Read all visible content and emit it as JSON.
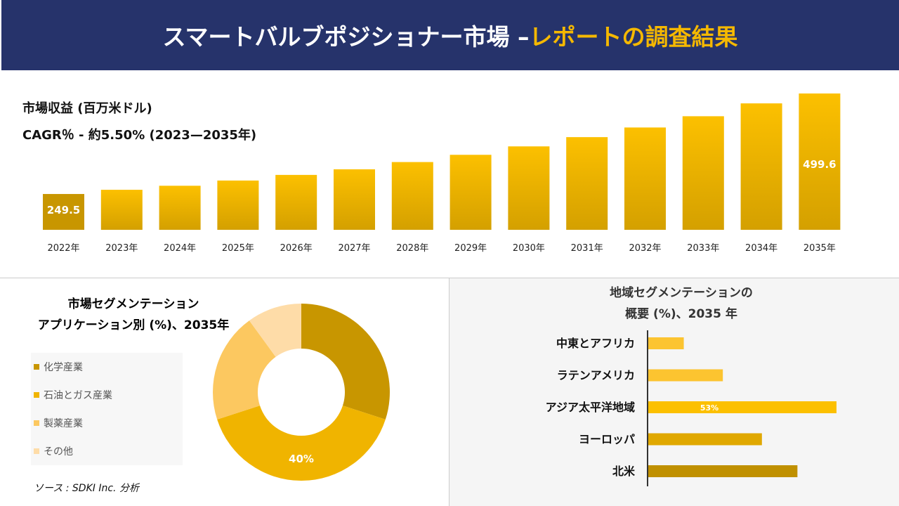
{
  "header": {
    "title_main": "スマートバルブポジショナー市場 –",
    "title_accent": "レポートの調査結果"
  },
  "revenue_label": "市場収益 (百万米ドル)",
  "cagr_label": "CAGR％ - 約5.50% (2023—2035年)",
  "colors": {
    "header_bg": "#26336b",
    "accent": "#f5b800",
    "bar_dark": "#c89600",
    "bar_light": "#fcc000"
  },
  "chart_data": [
    {
      "type": "bar",
      "title": "市場収益 (百万米ドル)",
      "categories": [
        "2022年",
        "2023年",
        "2024年",
        "2025年",
        "2026年",
        "2027年",
        "2028年",
        "2029年",
        "2030年",
        "2031年",
        "2032年",
        "2033年",
        "2034年",
        "2035年"
      ],
      "values": [
        249.5,
        260,
        270,
        283,
        297,
        311,
        329,
        347,
        368,
        391,
        415,
        443,
        475,
        499.6
      ],
      "data_labels": {
        "0": "249.5",
        "13": "499.6"
      }
    },
    {
      "type": "pie",
      "title": "市場セグメンテーション アプリケーション別 (%)、2035年",
      "title_lines": [
        "市場セグメンテーション",
        "アプリケーション別 (%)、2035年"
      ],
      "labels": [
        "化学産業",
        "石油とガス産業",
        "製薬産業",
        "その他"
      ],
      "values": [
        30,
        40,
        20,
        10
      ],
      "colors": [
        "#c89600",
        "#f0b400",
        "#fcc860",
        "#fedca8"
      ],
      "data_labels": {
        "1": "40%"
      }
    },
    {
      "type": "bar",
      "orientation": "horizontal",
      "title": "地域セグメンテーションの概要 (%)、2035 年",
      "title_lines": [
        "地域セグメンテーションの",
        "概要 (%)、2035 年"
      ],
      "categories": [
        "中東とアフリカ",
        "ラテンアメリカ",
        "アジア太平洋地域",
        "ヨーロッパ",
        "北米"
      ],
      "values": [
        10,
        21,
        53,
        32,
        42
      ],
      "colors": [
        "#fcc430",
        "#fcc430",
        "#fcc000",
        "#e0a800",
        "#c09000"
      ],
      "data_labels": {
        "2": "53%"
      }
    }
  ],
  "source": "ソース : SDKI Inc. 分析"
}
